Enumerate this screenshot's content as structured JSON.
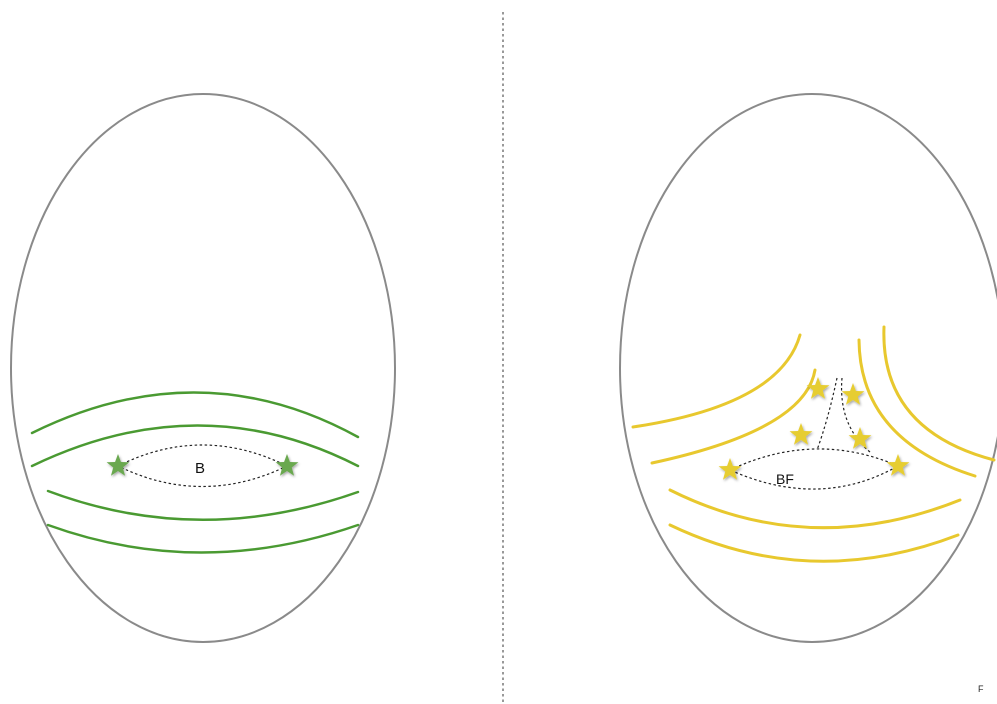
{
  "left_panel": {
    "region_label": "B",
    "line_color": "#4a9a32",
    "star_color": "#6aa84f"
  },
  "right_panel": {
    "region_label": "BF",
    "line_color": "#e8c82e",
    "star_color": "#e6cd32"
  },
  "corner_label": "F",
  "outline_color": "#8a8a8a"
}
